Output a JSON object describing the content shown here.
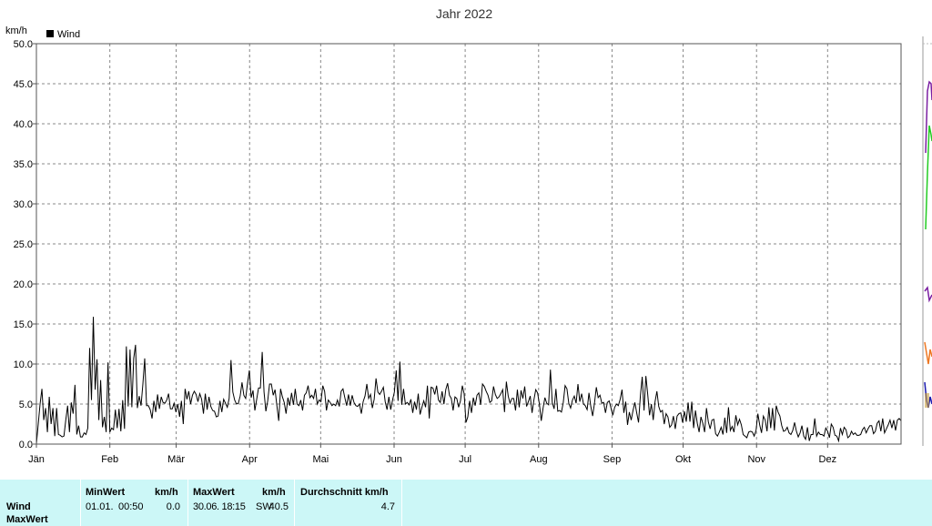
{
  "chart_data": {
    "type": "line",
    "title": "Jahr 2022",
    "ylabel": "km/h",
    "ylim": [
      0,
      50
    ],
    "yticks": [
      "0.0",
      "5.0",
      "10.0",
      "15.0",
      "20.0",
      "25.0",
      "30.0",
      "35.0",
      "40.0",
      "45.0",
      "50.0"
    ],
    "xticks": [
      "Jän",
      "Feb",
      "Mär",
      "Apr",
      "Mai",
      "Jun",
      "Jul",
      "Aug",
      "Sep",
      "Okt",
      "Nov",
      "Dez"
    ],
    "grid": true,
    "legend_position": "top-left",
    "series": [
      {
        "name": "Wind",
        "color": "#000000",
        "values": [
          0.0,
          2.5,
          5.0,
          6.9,
          3.0,
          4.5,
          1.5,
          5.9,
          2.5,
          4.5,
          1.0,
          4.5,
          1.2,
          1.1,
          0.9,
          1.0,
          3.0,
          4.8,
          1.5,
          5.2,
          3.8,
          7.4,
          1.2,
          2.3,
          0.9,
          0.9,
          1.4,
          1.2,
          2.0,
          12.0,
          5.5,
          15.9,
          6.8,
          10.6,
          3.0,
          8.0,
          2.1,
          3.4,
          1.5,
          10.2,
          1.5,
          2.0,
          1.8,
          4.3,
          2.0,
          4.4,
          1.6,
          5.5,
          1.9,
          12.2,
          4.7,
          11.8,
          4.6,
          10.7,
          12.4,
          4.5,
          6.0,
          4.8,
          7.5,
          10.7,
          4.8,
          4.8,
          4.3,
          3.2,
          5.4,
          4.0,
          6.2,
          4.4,
          5.9,
          5.2,
          5.1,
          5.5,
          6.3,
          4.4,
          4.4,
          5.1,
          4.0,
          5.0,
          3.4,
          5.4,
          2.5,
          6.9,
          5.6,
          6.6,
          5.0,
          6.1,
          6.6,
          6.2,
          5.3,
          6.3,
          5.6,
          3.8,
          6.3,
          4.3,
          5.9,
          4.7,
          4.2,
          4.1,
          3.4,
          3.5,
          5.4,
          4.0,
          5.6,
          5.1,
          4.6,
          5.7,
          10.5,
          6.5,
          5.5,
          5.0,
          5.1,
          6.0,
          7.7,
          6.1,
          5.7,
          7.6,
          9.2,
          5.8,
          6.7,
          4.2,
          5.6,
          7.0,
          7.0,
          11.5,
          6.5,
          4.1,
          5.4,
          7.5,
          7.5,
          6.1,
          6.8,
          4.8,
          2.9,
          6.9,
          5.9,
          5.2,
          3.8,
          5.8,
          4.8,
          6.4,
          4.9,
          6.9,
          5.0,
          4.8,
          5.5,
          4.2,
          6.1,
          6.4,
          7.3,
          5.8,
          6.1,
          5.7,
          6.9,
          5.0,
          5.5,
          5.3,
          7.3,
          6.6,
          4.2,
          5.5,
          5.2,
          4.8,
          5.0,
          4.8,
          5.5,
          4.7,
          6.6,
          6.9,
          5.8,
          4.8,
          6.2,
          4.8,
          6.1,
          5.2,
          4.8,
          4.7,
          5.0,
          3.8,
          5.3,
          6.0,
          7.5,
          5.7,
          6.2,
          4.5,
          5.6,
          8.2,
          6.5,
          6.2,
          6.6,
          7.1,
          5.3,
          4.3,
          5.9,
          4.3,
          5.5,
          6.5,
          9.2,
          5.4,
          10.3,
          4.9,
          6.9,
          5.0,
          5.2,
          4.9,
          5.6,
          3.9,
          5.3,
          4.3,
          6.3,
          3.7,
          4.6,
          5.4,
          4.6,
          7.3,
          3.2,
          7.1,
          7.0,
          6.2,
          7.3,
          5.5,
          5.2,
          6.6,
          5.0,
          6.8,
          7.6,
          6.1,
          5.7,
          4.2,
          5.9,
          5.7,
          4.6,
          5.4,
          7.3,
          6.3,
          2.7,
          3.4,
          5.4,
          3.9,
          5.8,
          4.8,
          6.1,
          6.4,
          4.9,
          7.5,
          7.2,
          6.6,
          6.1,
          5.2,
          5.4,
          7.2,
          6.2,
          5.7,
          5.9,
          6.3,
          6.8,
          4.0,
          7.8,
          6.0,
          5.1,
          5.7,
          5.7,
          4.2,
          6.8,
          4.6,
          6.7,
          5.7,
          7.2,
          4.7,
          5.3,
          6.0,
          3.9,
          5.5,
          6.8,
          6.4,
          5.0,
          2.9,
          4.5,
          5.8,
          5.1,
          4.9,
          9.3,
          5.2,
          4.4,
          6.9,
          4.1,
          4.2,
          4.0,
          5.2,
          7.3,
          6.9,
          5.1,
          4.5,
          5.5,
          6.0,
          5.1,
          7.5,
          5.3,
          6.3,
          5.0,
          4.8,
          4.3,
          6.4,
          4.7,
          3.5,
          5.1,
          7.1,
          5.8,
          6.1,
          5.1,
          5.2,
          3.9,
          5.2,
          5.4,
          4.5,
          3.6,
          4.6,
          5.0,
          4.8,
          5.6,
          6.8,
          3.9,
          5.3,
          2.4,
          4.0,
          3.0,
          4.2,
          5.2,
          3.9,
          2.7,
          6.0,
          8.4,
          4.2,
          8.5,
          6.2,
          3.6,
          5.0,
          3.0,
          5.3,
          6.6,
          4.7,
          4.0,
          4.2,
          2.5,
          3.8,
          3.4,
          2.1,
          2.4,
          3.5,
          1.9,
          3.5,
          3.8,
          3.9,
          2.7,
          4.1,
          2.8,
          5.2,
          2.8,
          5.3,
          2.0,
          4.2,
          2.6,
          1.5,
          3.4,
          2.6,
          1.5,
          4.5,
          2.8,
          1.9,
          3.0,
          3.1,
          1.3,
          1.0,
          1.5,
          2.1,
          1.2,
          3.3,
          1.4,
          4.6,
          1.7,
          2.2,
          1.5,
          3.6,
          2.4,
          3.1,
          2.4,
          1.2,
          1.0,
          0.8,
          1.5,
          1.6,
          1.5,
          1.0,
          1.7,
          3.8,
          2.4,
          1.4,
          3.5,
          3.0,
          1.6,
          4.6,
          2.0,
          4.5,
          1.7,
          4.8,
          4.0,
          3.5,
          2.3,
          1.6,
          1.7,
          2.1,
          1.4,
          1.2,
          1.7,
          2.7,
          1.6,
          0.9,
          1.4,
          2.3,
          1.0,
          0.6,
          2.1,
          0.4,
          1.2,
          1.2,
          3.2,
          1.0,
          1.5,
          1.2,
          1.2,
          1.0,
          2.0,
          1.6,
          0.8,
          2.5,
          2.1,
          1.1,
          1.0,
          0.4,
          2.0,
          1.2,
          2.1,
          1.8,
          0.8,
          1.0,
          1.6,
          1.2,
          1.4,
          1.1,
          1.1,
          1.2,
          1.8,
          2.1,
          1.4,
          1.9,
          2.3,
          2.3,
          1.3,
          1.6,
          2.6,
          2.9,
          1.6,
          3.2,
          1.4,
          1.9,
          2.4,
          3.0,
          2.0,
          3.0,
          1.7,
          3.0,
          3.2,
          2.9
        ]
      }
    ]
  },
  "stats": {
    "row_label_wind": "Wind",
    "row_label_max": "MaxWert",
    "min_header": "MinWert",
    "min_unit": "km/h",
    "min_date": "01.01.",
    "min_time": "00:50",
    "min_value": "0.0",
    "max_header": "MaxWert",
    "max_unit": "km/h",
    "max_datetime": "30.06.  18:15",
    "max_dir": "SW",
    "max_value": "40.5",
    "avg_header": "Durchschnitt km/h",
    "avg_value": "4.7"
  },
  "side_colors": [
    "#7b1fa2",
    "#22cc22",
    "#ee7722",
    "#1b1bb0",
    "#c8a040"
  ]
}
